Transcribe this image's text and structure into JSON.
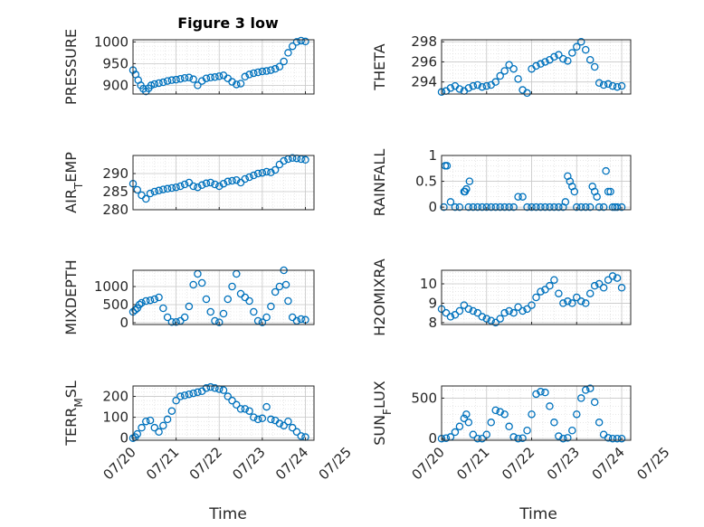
{
  "figure": {
    "title": "Figure 3 low",
    "xlabel": "Time",
    "x_tick_labels": [
      "07/20",
      "07/21",
      "07/22",
      "07/23",
      "07/24",
      "07/25"
    ],
    "marker_color": "#0072BD",
    "grid": "on (dotted minor grid)"
  },
  "chart_data": [
    {
      "type": "scatter",
      "panel": "top-left",
      "ylabel": "PRESSURE",
      "ylabel_sub": "",
      "title": "Figure 3 low",
      "xlim": [
        0,
        4.2
      ],
      "ylim": [
        880,
        1005
      ],
      "yticks": [
        900,
        950,
        1000
      ],
      "ytick_labels": [
        "900",
        "950",
        "1000"
      ],
      "x": [
        0,
        0.06,
        0.12,
        0.18,
        0.24,
        0.3,
        0.36,
        0.42,
        0.5,
        0.6,
        0.7,
        0.8,
        0.9,
        1.0,
        1.1,
        1.2,
        1.3,
        1.4,
        1.5,
        1.6,
        1.7,
        1.8,
        1.9,
        2.0,
        2.1,
        2.2,
        2.3,
        2.4,
        2.5,
        2.6,
        2.7,
        2.8,
        2.9,
        3.0,
        3.1,
        3.2,
        3.3,
        3.4,
        3.5,
        3.6,
        3.7,
        3.8,
        3.9,
        4.0
      ],
      "y": [
        935,
        925,
        912,
        900,
        892,
        886,
        893,
        900,
        903,
        905,
        907,
        910,
        912,
        913,
        915,
        917,
        918,
        914,
        900,
        910,
        916,
        918,
        919,
        921,
        923,
        916,
        908,
        902,
        904,
        920,
        925,
        928,
        930,
        932,
        933,
        935,
        938,
        943,
        955,
        975,
        990,
        1000,
        1003,
        1001
      ]
    },
    {
      "type": "scatter",
      "panel": "top-right",
      "ylabel": "THETA",
      "ylabel_sub": "",
      "xlim": [
        0,
        4.2
      ],
      "ylim": [
        292.8,
        298.2
      ],
      "yticks": [
        294,
        296,
        298
      ],
      "ytick_labels": [
        "294",
        "296",
        "298"
      ],
      "x": [
        0,
        0.1,
        0.2,
        0.3,
        0.4,
        0.5,
        0.6,
        0.7,
        0.8,
        0.9,
        1.0,
        1.1,
        1.2,
        1.3,
        1.4,
        1.5,
        1.6,
        1.7,
        1.8,
        1.9,
        2.0,
        2.1,
        2.2,
        2.3,
        2.4,
        2.5,
        2.6,
        2.7,
        2.8,
        2.9,
        3.0,
        3.1,
        3.2,
        3.3,
        3.4,
        3.5,
        3.6,
        3.7,
        3.8,
        3.9,
        4.0
      ],
      "y": [
        293.0,
        293.1,
        293.4,
        293.6,
        293.3,
        293.1,
        293.4,
        293.6,
        293.7,
        293.5,
        293.6,
        293.7,
        294.0,
        294.6,
        295.1,
        295.7,
        295.3,
        294.3,
        293.2,
        292.9,
        295.3,
        295.6,
        295.8,
        296.0,
        296.2,
        296.5,
        296.7,
        296.3,
        296.1,
        296.9,
        297.5,
        298.0,
        297.2,
        296.2,
        295.5,
        293.9,
        293.7,
        293.8,
        293.6,
        293.5,
        293.6
      ]
    },
    {
      "type": "scatter",
      "panel": "middle-left-1",
      "ylabel": "AIR",
      "ylabel_sub": "T",
      "ylabel_tail": "EMP",
      "xlim": [
        0,
        4.2
      ],
      "ylim": [
        280,
        295
      ],
      "yticks": [
        280,
        285,
        290
      ],
      "ytick_labels": [
        "280",
        "285",
        "290"
      ],
      "x": [
        0,
        0.1,
        0.2,
        0.3,
        0.4,
        0.5,
        0.6,
        0.7,
        0.8,
        0.9,
        1.0,
        1.1,
        1.2,
        1.3,
        1.4,
        1.5,
        1.6,
        1.7,
        1.8,
        1.9,
        2.0,
        2.1,
        2.2,
        2.3,
        2.4,
        2.5,
        2.6,
        2.7,
        2.8,
        2.9,
        3.0,
        3.1,
        3.2,
        3.3,
        3.4,
        3.5,
        3.6,
        3.7,
        3.8,
        3.9,
        4.0
      ],
      "y": [
        287.2,
        285.5,
        284.0,
        283.0,
        284.5,
        285.0,
        285.3,
        285.6,
        285.8,
        286.0,
        286.2,
        286.5,
        287.0,
        287.5,
        286.5,
        286.2,
        286.8,
        287.3,
        287.5,
        287.0,
        286.5,
        287.2,
        287.8,
        288.0,
        288.2,
        287.5,
        288.5,
        289.0,
        289.5,
        290.0,
        290.2,
        290.5,
        290.3,
        291.0,
        292.5,
        293.5,
        294.0,
        294.3,
        294.2,
        294.0,
        293.8
      ]
    },
    {
      "type": "scatter",
      "panel": "middle-right-1",
      "ylabel": "RAINFALL",
      "ylabel_sub": "",
      "xlim": [
        0,
        4.2
      ],
      "ylim": [
        -0.05,
        1.0
      ],
      "yticks": [
        0,
        0.5,
        1
      ],
      "ytick_labels": [
        "0",
        "0.5",
        "1"
      ],
      "x": [
        0.05,
        0.08,
        0.12,
        0.2,
        0.3,
        0.4,
        0.5,
        0.52,
        0.55,
        0.6,
        0.62,
        0.7,
        0.8,
        0.9,
        1.0,
        1.1,
        1.2,
        1.3,
        1.4,
        1.5,
        1.6,
        1.7,
        1.8,
        1.9,
        2.0,
        2.1,
        2.2,
        2.3,
        2.4,
        2.5,
        2.6,
        2.7,
        2.75,
        2.8,
        2.85,
        2.9,
        2.95,
        3.0,
        3.1,
        3.2,
        3.3,
        3.35,
        3.4,
        3.45,
        3.5,
        3.6,
        3.65,
        3.7,
        3.75,
        3.8,
        3.85,
        3.9,
        4.0
      ],
      "y": [
        0,
        0.8,
        0.8,
        0.1,
        0,
        0,
        0.3,
        0.3,
        0.35,
        0,
        0.5,
        0,
        0,
        0,
        0,
        0,
        0,
        0,
        0,
        0,
        0,
        0.2,
        0.2,
        0,
        0,
        0,
        0,
        0,
        0,
        0,
        0,
        0,
        0.1,
        0.6,
        0.5,
        0.4,
        0.3,
        0,
        0,
        0,
        0,
        0.4,
        0.3,
        0.2,
        0,
        0,
        0.7,
        0.3,
        0.3,
        0,
        0,
        0,
        0
      ]
    },
    {
      "type": "scatter",
      "panel": "middle-left-2",
      "ylabel": "MIXDEPTH",
      "ylabel_sub": "",
      "xlim": [
        0,
        4.2
      ],
      "ylim": [
        -50,
        1450
      ],
      "yticks": [
        0,
        500,
        1000
      ],
      "ytick_labels": [
        "0",
        "500",
        "1000"
      ],
      "x": [
        0,
        0.05,
        0.1,
        0.15,
        0.2,
        0.3,
        0.4,
        0.5,
        0.6,
        0.7,
        0.8,
        0.9,
        1.0,
        1.1,
        1.2,
        1.3,
        1.4,
        1.5,
        1.6,
        1.7,
        1.8,
        1.9,
        2.0,
        2.1,
        2.2,
        2.3,
        2.4,
        2.5,
        2.6,
        2.7,
        2.8,
        2.9,
        3.0,
        3.1,
        3.2,
        3.3,
        3.4,
        3.5,
        3.55,
        3.6,
        3.7,
        3.8,
        3.9,
        4.0
      ],
      "y": [
        300,
        350,
        400,
        500,
        550,
        600,
        620,
        650,
        700,
        400,
        150,
        20,
        20,
        50,
        150,
        450,
        1050,
        1350,
        1100,
        650,
        300,
        50,
        10,
        250,
        650,
        1000,
        1350,
        800,
        700,
        600,
        300,
        50,
        10,
        150,
        450,
        850,
        1000,
        1450,
        1050,
        600,
        150,
        50,
        100,
        80
      ]
    },
    {
      "type": "scatter",
      "panel": "middle-right-2",
      "ylabel": "H2OMIXRA",
      "ylabel_sub": "",
      "xlim": [
        0,
        4.2
      ],
      "ylim": [
        7.9,
        10.7
      ],
      "yticks": [
        8,
        9,
        10
      ],
      "ytick_labels": [
        "8",
        "9",
        "10"
      ],
      "x": [
        0,
        0.1,
        0.2,
        0.3,
        0.4,
        0.5,
        0.6,
        0.7,
        0.8,
        0.9,
        1.0,
        1.1,
        1.2,
        1.3,
        1.4,
        1.5,
        1.6,
        1.7,
        1.8,
        1.9,
        2.0,
        2.1,
        2.2,
        2.3,
        2.4,
        2.5,
        2.6,
        2.7,
        2.8,
        2.9,
        3.0,
        3.1,
        3.2,
        3.3,
        3.4,
        3.5,
        3.6,
        3.7,
        3.8,
        3.9,
        4.0
      ],
      "y": [
        8.7,
        8.5,
        8.3,
        8.4,
        8.6,
        8.9,
        8.7,
        8.6,
        8.5,
        8.3,
        8.2,
        8.1,
        8.0,
        8.2,
        8.5,
        8.6,
        8.5,
        8.8,
        8.6,
        8.7,
        8.9,
        9.3,
        9.6,
        9.7,
        9.9,
        10.2,
        9.5,
        9.0,
        9.1,
        9.0,
        9.3,
        9.1,
        9.0,
        9.5,
        9.9,
        10.0,
        9.8,
        10.2,
        10.4,
        10.3,
        9.8
      ]
    },
    {
      "type": "scatter",
      "panel": "bottom-left",
      "ylabel": "TERR",
      "ylabel_sub": "M",
      "ylabel_tail": "SL",
      "xlim": [
        0,
        4.2
      ],
      "ylim": [
        -10,
        250
      ],
      "yticks": [
        0,
        100,
        200
      ],
      "ytick_labels": [
        "0",
        "100",
        "200"
      ],
      "x": [
        0,
        0.05,
        0.1,
        0.2,
        0.3,
        0.4,
        0.5,
        0.6,
        0.7,
        0.8,
        0.9,
        1.0,
        1.1,
        1.2,
        1.3,
        1.4,
        1.5,
        1.6,
        1.7,
        1.8,
        1.9,
        2.0,
        2.1,
        2.2,
        2.3,
        2.4,
        2.5,
        2.6,
        2.7,
        2.8,
        2.9,
        3.0,
        3.1,
        3.2,
        3.3,
        3.4,
        3.5,
        3.6,
        3.7,
        3.8,
        3.9,
        4.0
      ],
      "y": [
        0,
        5,
        20,
        50,
        80,
        85,
        50,
        30,
        60,
        90,
        130,
        180,
        200,
        205,
        210,
        215,
        220,
        225,
        240,
        245,
        240,
        235,
        230,
        200,
        180,
        160,
        140,
        140,
        130,
        100,
        90,
        95,
        150,
        90,
        85,
        70,
        60,
        80,
        50,
        30,
        10,
        5
      ]
    },
    {
      "type": "scatter",
      "panel": "bottom-right",
      "ylabel": "SUN",
      "ylabel_sub": "F",
      "ylabel_tail": "LUX",
      "xlim": [
        0,
        4.2
      ],
      "ylim": [
        -20,
        650
      ],
      "yticks": [
        0,
        500
      ],
      "ytick_labels": [
        "0",
        "500"
      ],
      "x": [
        0,
        0.1,
        0.2,
        0.3,
        0.4,
        0.5,
        0.55,
        0.6,
        0.7,
        0.8,
        0.9,
        1.0,
        1.1,
        1.2,
        1.3,
        1.4,
        1.5,
        1.6,
        1.7,
        1.8,
        1.9,
        2.0,
        2.1,
        2.2,
        2.3,
        2.4,
        2.5,
        2.6,
        2.7,
        2.8,
        2.9,
        3.0,
        3.1,
        3.2,
        3.3,
        3.4,
        3.5,
        3.6,
        3.7,
        3.8,
        3.9,
        4.0
      ],
      "y": [
        0,
        5,
        20,
        80,
        150,
        250,
        300,
        200,
        50,
        0,
        0,
        50,
        200,
        350,
        330,
        300,
        150,
        20,
        0,
        5,
        100,
        300,
        550,
        580,
        570,
        400,
        200,
        30,
        0,
        10,
        100,
        300,
        500,
        600,
        620,
        450,
        200,
        50,
        10,
        0,
        0,
        0
      ]
    }
  ]
}
